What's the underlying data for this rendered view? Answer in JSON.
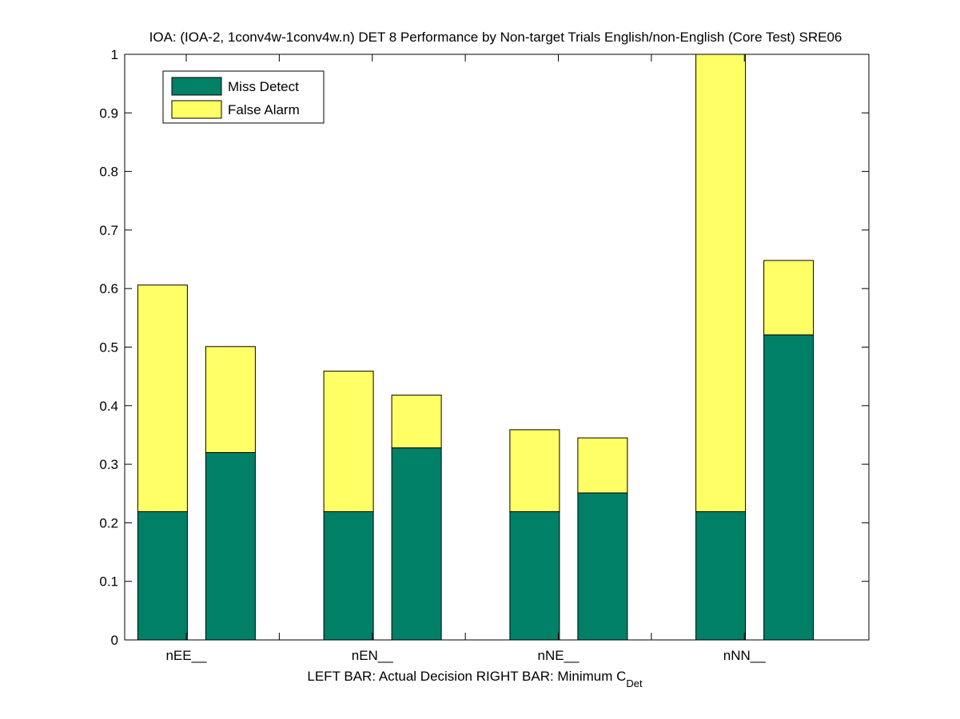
{
  "chart_data": {
    "type": "bar",
    "stacked": true,
    "title": "IOA: (IOA-2, 1conv4w-1conv4w.n) DET 8 Performance by Non-target Trials English/non-English (Core Test) SRE06",
    "xlabel_parts": {
      "main": "LEFT BAR: Actual Decision     RIGHT BAR: Minimum C",
      "sub": "Det"
    },
    "ylabel": "",
    "ylim": [
      0,
      1
    ],
    "yticks": [
      0,
      0.1,
      0.2,
      0.3,
      0.4,
      0.5,
      0.6,
      0.7,
      0.8,
      0.9,
      1
    ],
    "ytick_labels": [
      "0",
      "0.1",
      "0.2",
      "0.3",
      "0.4",
      "0.5",
      "0.6",
      "0.7",
      "0.8",
      "0.9",
      "1"
    ],
    "categories": [
      "nEE__",
      "nEN__",
      "nNE__",
      "nNN__"
    ],
    "bars_per_category": [
      "Actual Decision",
      "Minimum C_Det"
    ],
    "series": [
      {
        "name": "Miss Detect",
        "color": "#008066",
        "values": [
          [
            0.219,
            0.32
          ],
          [
            0.219,
            0.328
          ],
          [
            0.219,
            0.251
          ],
          [
            0.219,
            0.521
          ]
        ]
      },
      {
        "name": "False Alarm",
        "color": "#ffff66",
        "values": [
          [
            0.387,
            0.181
          ],
          [
            0.24,
            0.09
          ],
          [
            0.14,
            0.094
          ],
          [
            0.781,
            0.127
          ]
        ]
      }
    ],
    "legend_position": "top-left",
    "grid": false
  }
}
